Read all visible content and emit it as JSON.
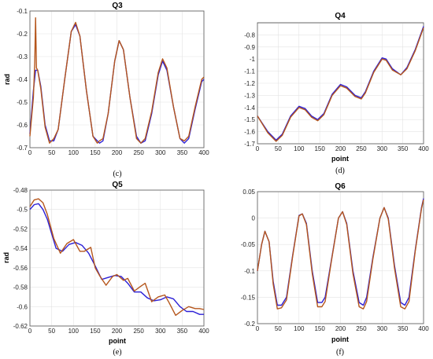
{
  "colors": {
    "series_blue": "#2b1fd6",
    "series_brown": "#b5561c",
    "grid": "#e3e3e3"
  },
  "chart_data": [
    {
      "id": "c",
      "type": "line",
      "title": "Q3",
      "caption": "(c)",
      "xlabel": "",
      "ylabel": "rad",
      "xlim": [
        0,
        400
      ],
      "ylim": [
        -0.7,
        -0.1
      ],
      "xticks": [
        0,
        50,
        100,
        150,
        200,
        250,
        300,
        350,
        400
      ],
      "yticks": [
        -0.7,
        -0.6,
        -0.5,
        -0.4,
        -0.3,
        -0.2,
        -0.1
      ],
      "series": [
        {
          "color": "#2b1fd6",
          "x": [
            0,
            8,
            13,
            18,
            25,
            35,
            45,
            55,
            65,
            80,
            95,
            105,
            115,
            130,
            145,
            155,
            160,
            168,
            180,
            195,
            205,
            215,
            230,
            245,
            255,
            265,
            280,
            295,
            305,
            315,
            330,
            345,
            355,
            365,
            380,
            395,
            400
          ],
          "y": [
            -0.64,
            -0.45,
            -0.36,
            -0.36,
            -0.43,
            -0.6,
            -0.67,
            -0.67,
            -0.62,
            -0.4,
            -0.19,
            -0.16,
            -0.21,
            -0.45,
            -0.65,
            -0.67,
            -0.68,
            -0.67,
            -0.55,
            -0.32,
            -0.23,
            -0.27,
            -0.48,
            -0.65,
            -0.68,
            -0.67,
            -0.55,
            -0.38,
            -0.32,
            -0.36,
            -0.52,
            -0.66,
            -0.68,
            -0.66,
            -0.53,
            -0.41,
            -0.4
          ]
        },
        {
          "color": "#b5561c",
          "x": [
            0,
            8,
            11,
            13,
            15,
            18,
            25,
            35,
            45,
            55,
            65,
            80,
            95,
            105,
            115,
            130,
            145,
            155,
            160,
            168,
            180,
            195,
            205,
            215,
            230,
            245,
            255,
            265,
            280,
            295,
            305,
            315,
            330,
            345,
            355,
            365,
            380,
            395,
            400
          ],
          "y": [
            -0.65,
            -0.48,
            -0.33,
            -0.13,
            -0.35,
            -0.36,
            -0.44,
            -0.61,
            -0.68,
            -0.66,
            -0.62,
            -0.4,
            -0.19,
            -0.15,
            -0.21,
            -0.45,
            -0.65,
            -0.68,
            -0.67,
            -0.66,
            -0.55,
            -0.32,
            -0.23,
            -0.27,
            -0.48,
            -0.66,
            -0.68,
            -0.66,
            -0.54,
            -0.37,
            -0.31,
            -0.35,
            -0.52,
            -0.66,
            -0.67,
            -0.65,
            -0.52,
            -0.4,
            -0.39
          ]
        }
      ]
    },
    {
      "id": "d",
      "type": "line",
      "title": "Q4",
      "caption": "(d)",
      "xlabel": "point",
      "ylabel": "",
      "xlim": [
        0,
        400
      ],
      "ylim": [
        -1.7,
        -0.7
      ],
      "xticks": [
        0,
        50,
        100,
        150,
        200,
        250,
        300,
        350,
        400
      ],
      "yticks": [
        -1.7,
        -1.6,
        -1.5,
        -1.4,
        -1.3,
        -1.2,
        -1.1,
        -1,
        -0.9,
        -0.8
      ],
      "series": [
        {
          "color": "#2b1fd6",
          "x": [
            0,
            25,
            45,
            60,
            80,
            100,
            115,
            130,
            145,
            160,
            180,
            200,
            215,
            235,
            250,
            260,
            280,
            300,
            310,
            325,
            345,
            360,
            380,
            400
          ],
          "y": [
            -1.47,
            -1.6,
            -1.67,
            -1.62,
            -1.47,
            -1.39,
            -1.41,
            -1.47,
            -1.5,
            -1.45,
            -1.29,
            -1.21,
            -1.23,
            -1.3,
            -1.32,
            -1.27,
            -1.1,
            -0.99,
            -1.0,
            -1.08,
            -1.13,
            -1.07,
            -0.92,
            -0.73
          ]
        },
        {
          "color": "#b5561c",
          "x": [
            0,
            25,
            45,
            60,
            80,
            100,
            115,
            130,
            145,
            160,
            180,
            200,
            215,
            235,
            250,
            260,
            280,
            300,
            310,
            325,
            345,
            360,
            380,
            400
          ],
          "y": [
            -1.47,
            -1.61,
            -1.68,
            -1.63,
            -1.48,
            -1.4,
            -1.42,
            -1.48,
            -1.51,
            -1.46,
            -1.3,
            -1.22,
            -1.24,
            -1.31,
            -1.33,
            -1.28,
            -1.11,
            -1.0,
            -1.01,
            -1.09,
            -1.13,
            -1.08,
            -0.93,
            -0.74
          ]
        }
      ]
    },
    {
      "id": "e",
      "type": "line",
      "title": "Q5",
      "caption": "(e)",
      "xlabel": "point",
      "ylabel": "rad",
      "xlim": [
        0,
        400
      ],
      "ylim": [
        -0.62,
        -0.48
      ],
      "xticks": [
        0,
        50,
        100,
        150,
        200,
        250,
        300,
        350,
        400
      ],
      "yticks": [
        -0.62,
        -0.6,
        -0.58,
        -0.56,
        -0.54,
        -0.52,
        -0.5,
        -0.48
      ],
      "series": [
        {
          "color": "#2b1fd6",
          "x": [
            0,
            10,
            20,
            30,
            40,
            50,
            60,
            75,
            90,
            105,
            120,
            135,
            150,
            165,
            180,
            195,
            210,
            225,
            240,
            255,
            270,
            285,
            300,
            315,
            330,
            345,
            360,
            375,
            390,
            400
          ],
          "y": [
            -0.5,
            -0.495,
            -0.494,
            -0.5,
            -0.51,
            -0.525,
            -0.54,
            -0.543,
            -0.536,
            -0.534,
            -0.537,
            -0.545,
            -0.558,
            -0.572,
            -0.57,
            -0.568,
            -0.569,
            -0.576,
            -0.585,
            -0.585,
            -0.591,
            -0.594,
            -0.593,
            -0.59,
            -0.592,
            -0.6,
            -0.605,
            -0.605,
            -0.608,
            -0.608
          ]
        },
        {
          "color": "#b5561c",
          "x": [
            0,
            10,
            20,
            30,
            40,
            55,
            70,
            85,
            100,
            115,
            125,
            140,
            150,
            160,
            175,
            190,
            200,
            215,
            225,
            240,
            255,
            265,
            280,
            295,
            310,
            320,
            335,
            350,
            365,
            380,
            390,
            400
          ],
          "y": [
            -0.497,
            -0.49,
            -0.489,
            -0.493,
            -0.505,
            -0.53,
            -0.545,
            -0.535,
            -0.531,
            -0.543,
            -0.543,
            -0.539,
            -0.56,
            -0.568,
            -0.578,
            -0.569,
            -0.567,
            -0.573,
            -0.571,
            -0.584,
            -0.579,
            -0.576,
            -0.595,
            -0.59,
            -0.588,
            -0.596,
            -0.609,
            -0.604,
            -0.6,
            -0.602,
            -0.602,
            -0.603
          ]
        }
      ]
    },
    {
      "id": "f",
      "type": "line",
      "title": "Q6",
      "caption": "(f)",
      "xlabel": "point",
      "ylabel": "",
      "xlim": [
        0,
        400
      ],
      "ylim": [
        -0.2,
        0.05
      ],
      "xticks": [
        0,
        50,
        100,
        150,
        200,
        250,
        300,
        350,
        400
      ],
      "yticks": [
        -0.2,
        -0.15,
        -0.1,
        -0.05,
        0,
        0.05
      ],
      "series": [
        {
          "color": "#2b1fd6",
          "x": [
            0,
            10,
            18,
            28,
            38,
            48,
            58,
            70,
            85,
            100,
            108,
            118,
            132,
            145,
            155,
            163,
            178,
            195,
            205,
            215,
            230,
            245,
            255,
            263,
            278,
            295,
            305,
            315,
            330,
            345,
            355,
            365,
            380,
            395,
            400
          ],
          "y": [
            -0.1,
            -0.05,
            -0.025,
            -0.045,
            -0.12,
            -0.165,
            -0.165,
            -0.15,
            -0.07,
            0.005,
            0.008,
            -0.01,
            -0.1,
            -0.16,
            -0.16,
            -0.15,
            -0.08,
            0.0,
            0.012,
            -0.01,
            -0.1,
            -0.16,
            -0.165,
            -0.15,
            -0.075,
            0.0,
            0.02,
            0.0,
            -0.09,
            -0.16,
            -0.165,
            -0.15,
            -0.06,
            0.02,
            0.037
          ]
        },
        {
          "color": "#b5561c",
          "x": [
            0,
            10,
            18,
            28,
            38,
            48,
            58,
            70,
            85,
            100,
            108,
            118,
            132,
            145,
            155,
            163,
            178,
            195,
            205,
            215,
            230,
            245,
            255,
            263,
            278,
            295,
            305,
            315,
            330,
            345,
            355,
            365,
            380,
            395,
            400
          ],
          "y": [
            -0.1,
            -0.05,
            -0.025,
            -0.045,
            -0.125,
            -0.172,
            -0.17,
            -0.155,
            -0.072,
            0.004,
            0.008,
            -0.012,
            -0.105,
            -0.168,
            -0.168,
            -0.158,
            -0.082,
            0.0,
            0.012,
            -0.012,
            -0.105,
            -0.168,
            -0.172,
            -0.158,
            -0.078,
            0.0,
            0.02,
            -0.002,
            -0.095,
            -0.168,
            -0.172,
            -0.158,
            -0.062,
            0.018,
            0.035
          ]
        }
      ]
    }
  ]
}
